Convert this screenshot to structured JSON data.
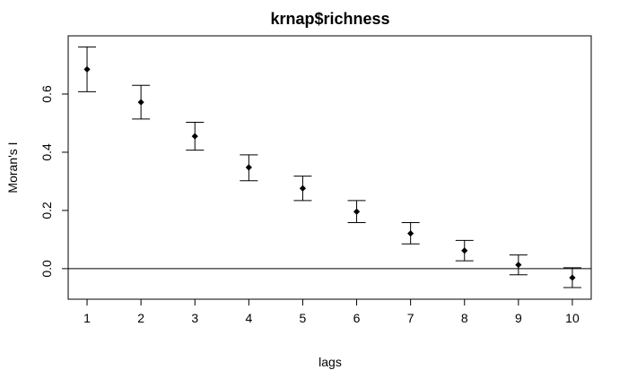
{
  "chart_data": {
    "type": "scatter",
    "title": "krnap$richness",
    "xlabel": "lags",
    "ylabel": "Moran's I",
    "xlim": [
      0.65,
      10.35
    ],
    "ylim": [
      -0.105,
      0.8
    ],
    "x_ticks": [
      "1",
      "2",
      "3",
      "4",
      "5",
      "6",
      "7",
      "8",
      "9",
      "10"
    ],
    "y_ticks": [
      "0.0",
      "0.2",
      "0.4",
      "0.6"
    ],
    "y_tick_values": [
      0.0,
      0.2,
      0.4,
      0.6
    ],
    "reference_line": 0.0,
    "points": [
      {
        "x": 1,
        "y": 0.685,
        "lower": 0.608,
        "upper": 0.762
      },
      {
        "x": 2,
        "y": 0.572,
        "lower": 0.514,
        "upper": 0.63
      },
      {
        "x": 3,
        "y": 0.455,
        "lower": 0.407,
        "upper": 0.503
      },
      {
        "x": 4,
        "y": 0.348,
        "lower": 0.302,
        "upper": 0.391
      },
      {
        "x": 5,
        "y": 0.276,
        "lower": 0.234,
        "upper": 0.318
      },
      {
        "x": 6,
        "y": 0.196,
        "lower": 0.158,
        "upper": 0.234
      },
      {
        "x": 7,
        "y": 0.121,
        "lower": 0.085,
        "upper": 0.158
      },
      {
        "x": 8,
        "y": 0.062,
        "lower": 0.027,
        "upper": 0.097
      },
      {
        "x": 9,
        "y": 0.013,
        "lower": -0.021,
        "upper": 0.047
      },
      {
        "x": 10,
        "y": -0.031,
        "lower": -0.065,
        "upper": 0.003
      }
    ]
  }
}
